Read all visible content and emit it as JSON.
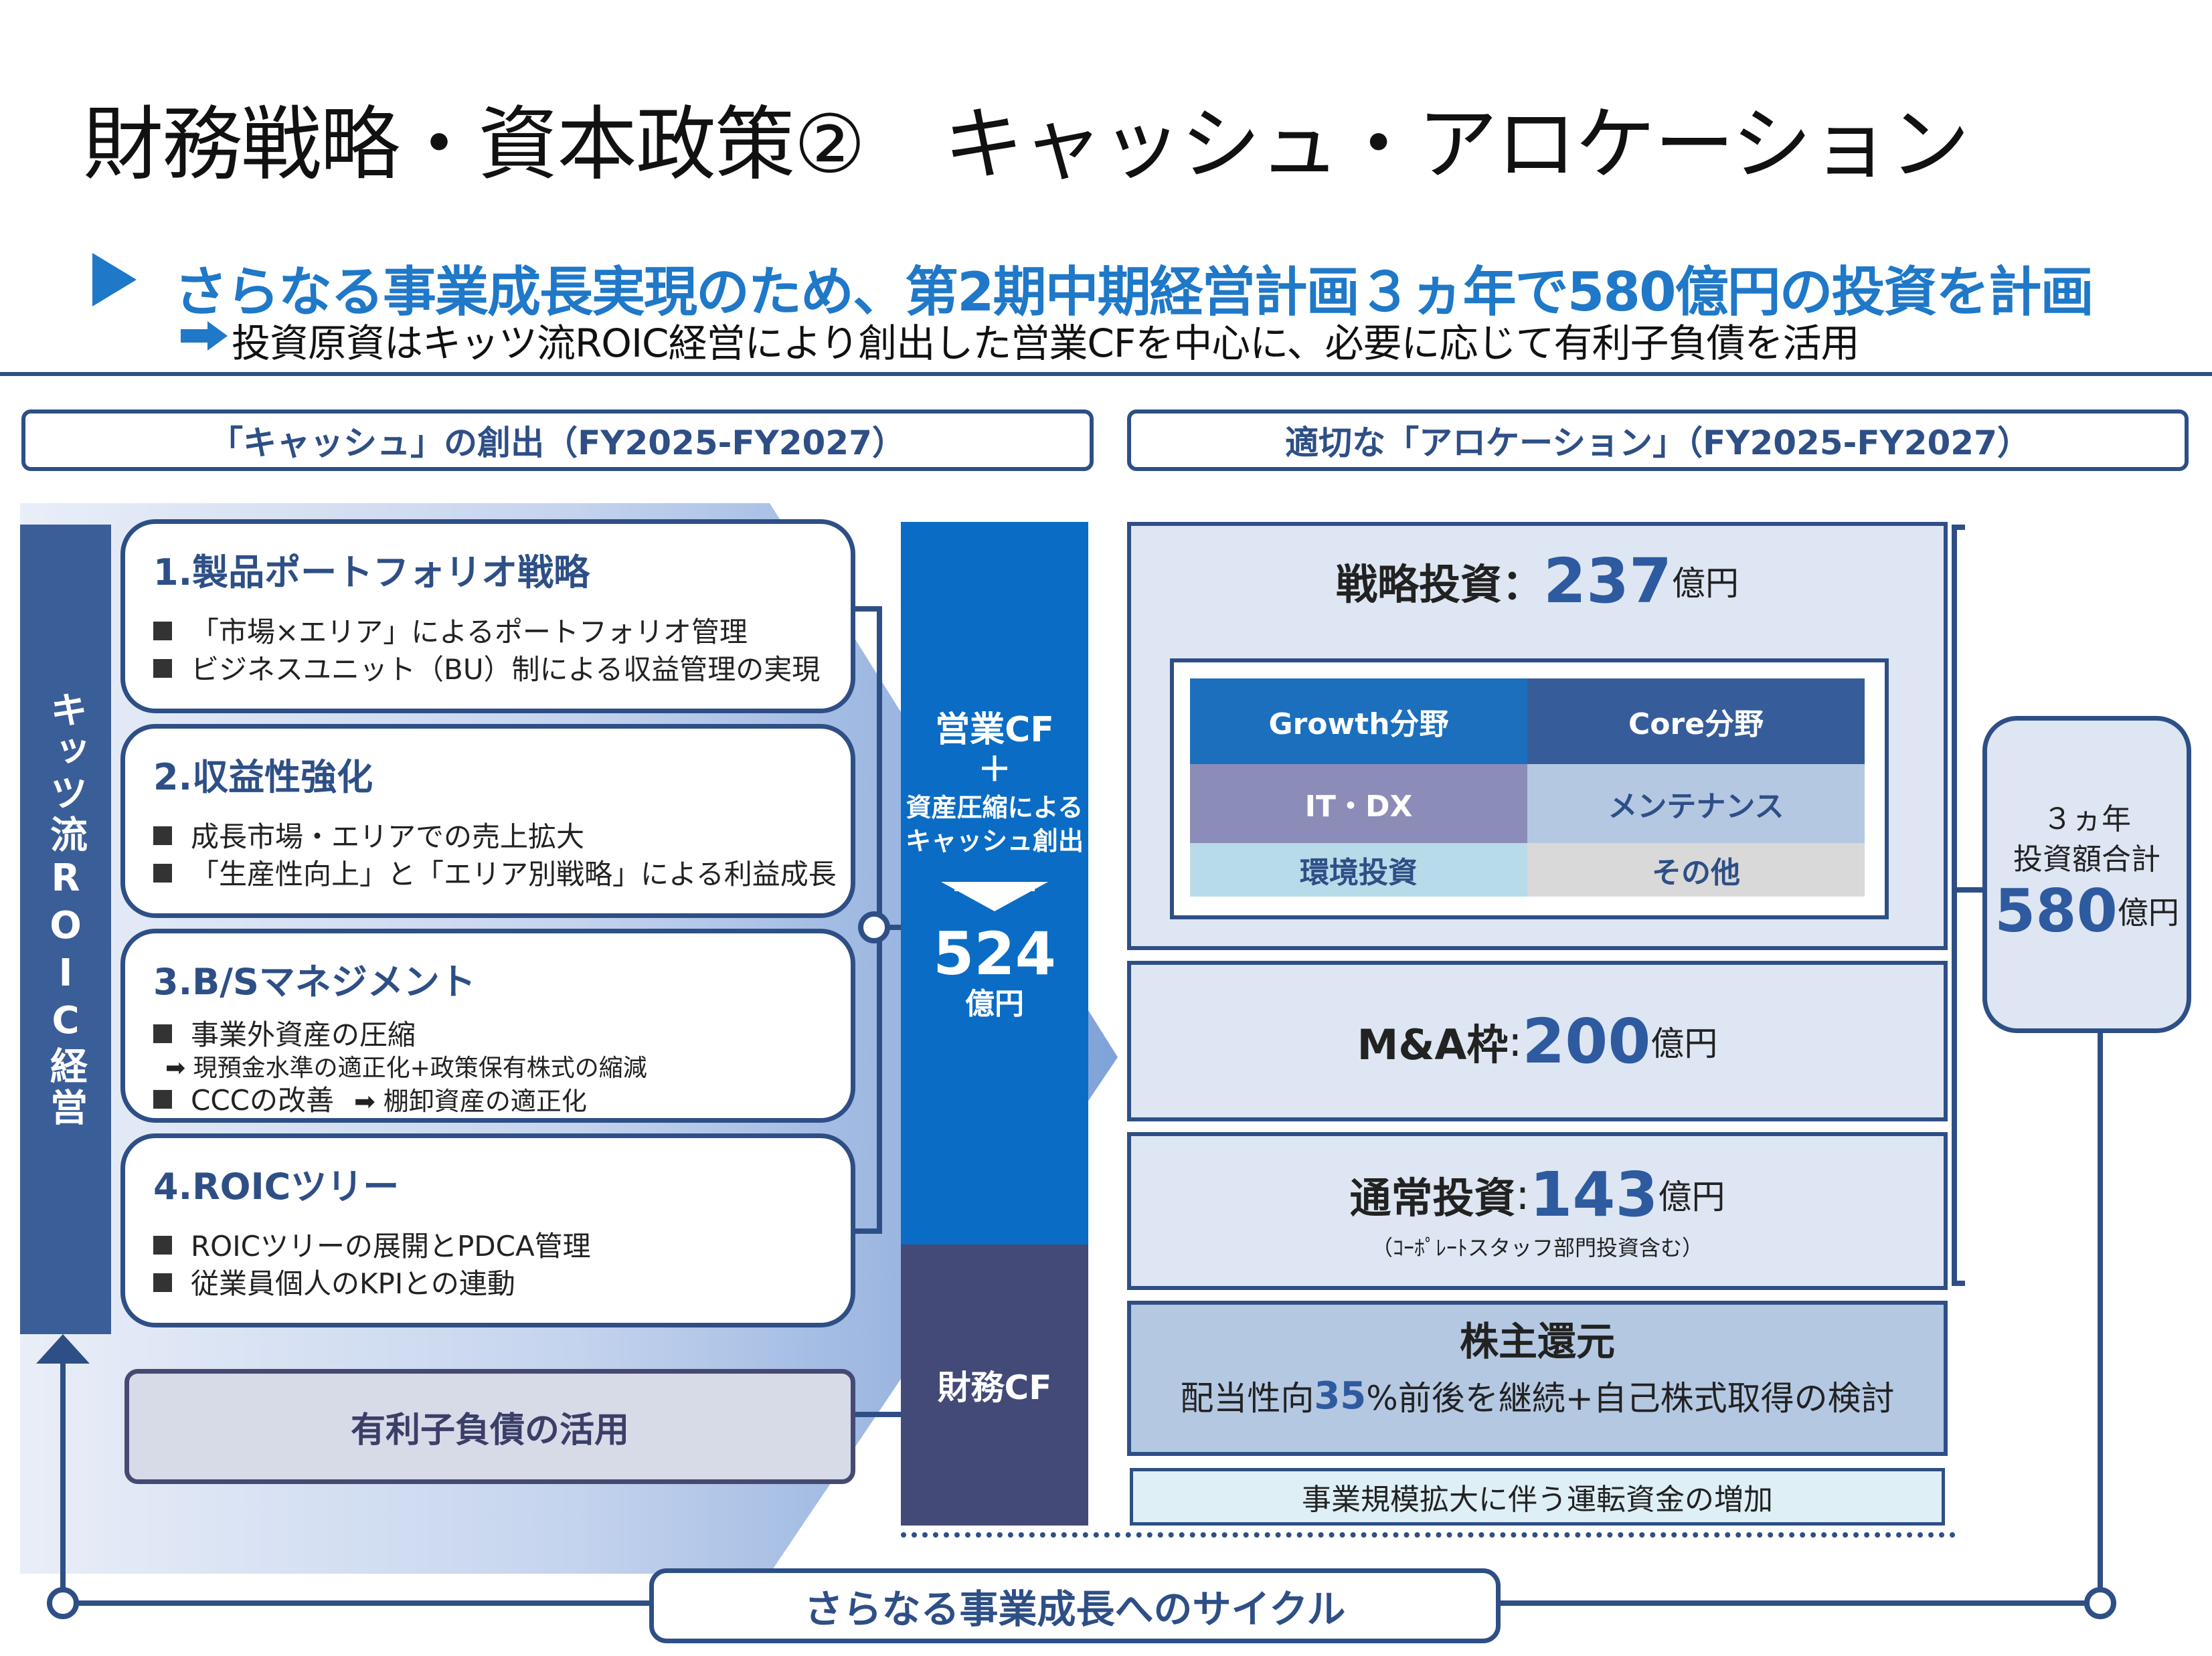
{
  "title": "財務戦略・資本政策②　キャッシュ・アロケーション",
  "subtitle": "さらなる事業成長実現のため、第2期中期経営計画３ヵ年で580億円の投資を計画",
  "subnote": "投資原資はキッツ流ROIC経営により創出した営業CFを中心に、必要に応じて有利子負債を活用",
  "left_header": "「キャッシュ」の創出（FY2025-FY2027）",
  "right_header": "適切な「アロケーション」（FY2025-FY2027）",
  "roic_label": "キッツ流ROIC経営",
  "cards": [
    {
      "title": "1.製品ポートフォリオ戦略",
      "bullets": [
        "「市場×エリア」によるポートフォリオ管理",
        "ビジネスユニット（BU）制による収益管理の実現"
      ]
    },
    {
      "title": "2.収益性強化",
      "bullets": [
        "成長市場・エリアでの売上拡大",
        "「生産性向上」と「エリア別戦略」による利益成長"
      ]
    },
    {
      "title": "3.B/Sマネジメント",
      "bullet1": "事業外資産の圧縮",
      "sub1": "現預金水準の適正化+政策保有株式の縮減",
      "bullet2": "CCCの改善",
      "sub2": "棚卸資産の適正化"
    },
    {
      "title": "4.ROICツリー",
      "bullets": [
        "ROICツリーの展開とPDCA管理",
        "従業員個人のKPIとの連動"
      ]
    }
  ],
  "debt_box": "有利子負債の活用",
  "opcf": {
    "line1": "営業CF",
    "plus": "＋",
    "line2": "資産圧縮による",
    "line3": "キャッシュ創出",
    "value": "524",
    "unit": "億円"
  },
  "fincf": "財務CF",
  "strategic": {
    "label": "戦略投資：",
    "value": "237",
    "unit": "億円"
  },
  "grid": {
    "h1": "Growth分野",
    "h2": "Core分野",
    "r1c1": "IT・DX",
    "r1c2": "メンテナンス",
    "r2c1": "環境投資",
    "r2c2": "その他"
  },
  "ma": {
    "label": "M&A枠",
    "colon": ":",
    "value": "200",
    "unit": "億円"
  },
  "normal": {
    "label": "通常投資",
    "colon": ":",
    "value": "143",
    "unit": "億円",
    "note": "（ｺｰﾎﾟﾚｰﾄスタッフ部門投資含む）"
  },
  "shareholder": {
    "title": "株主還元",
    "pre": "配当性向",
    "pct": "35",
    "post": "%前後を継続+自己株式取得の検討"
  },
  "working_capital": "事業規模拡大に伴う運転資金の増加",
  "total": {
    "line1": "３ヵ年",
    "line2": "投資額合計",
    "value": "580",
    "unit": "億円"
  },
  "cycle": "さらなる事業成長へのサイクル",
  "colors": {
    "navy": "#2e4f86",
    "blue": "#1f78c8",
    "opcf": "#0a6cc4",
    "fincf": "#434a78",
    "growth": "#1b6fbd",
    "core": "#365d99",
    "itdx": "#8c8cb8",
    "maint": "#b4c8e2",
    "env": "#b8dbe9",
    "other": "#d9d9d9"
  }
}
